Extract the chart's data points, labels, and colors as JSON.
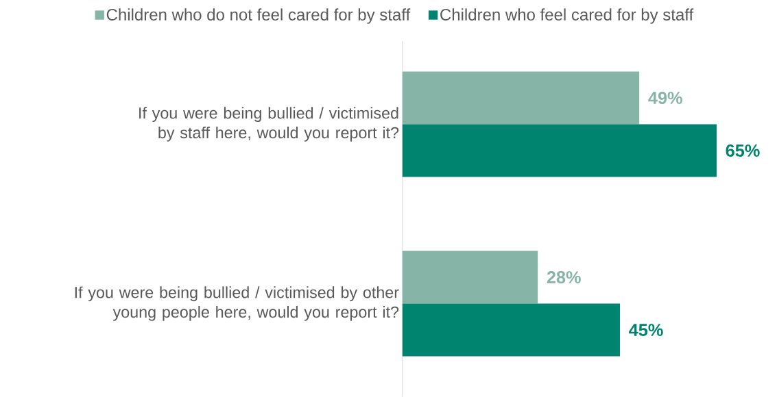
{
  "chart_data": {
    "type": "bar",
    "orientation": "horizontal",
    "categories": [
      "If you were being bullied / victimised by staff here, would you report it?",
      "If you were being bullied / victimised by other young people here, would you report it?"
    ],
    "series": [
      {
        "name": "Children who do not feel cared for by staff",
        "color": "#86b5a7",
        "values": [
          49,
          28
        ],
        "value_labels": [
          "49%",
          "28%"
        ]
      },
      {
        "name": "Children who feel cared for by staff",
        "color": "#00836f",
        "values": [
          65,
          45
        ],
        "value_labels": [
          "65%",
          "45%"
        ]
      }
    ],
    "legend": "top",
    "tick_labels": "y",
    "grid": false
  }
}
